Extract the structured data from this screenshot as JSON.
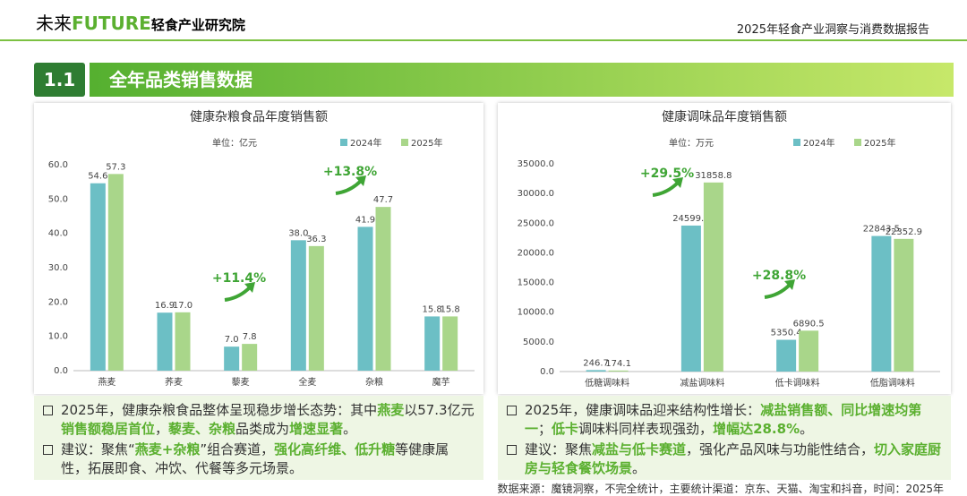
{
  "header": {
    "logo_a": "未来",
    "logo_b": "FUTURE",
    "logo_c": "轻食产业研究院",
    "report": "2025年轻食产业洞察与消费数据报告"
  },
  "section": {
    "number": "1.1",
    "title": "全年品类销售数据"
  },
  "chart_data": [
    {
      "type": "bar",
      "title": "健康杂粮食品年度销售额",
      "unit": "单位：亿元",
      "categories": [
        "燕麦",
        "荞麦",
        "藜麦",
        "全麦",
        "杂粮",
        "魔芋"
      ],
      "series": [
        {
          "name": "2024年",
          "color": "#6cbfc5",
          "values": [
            54.6,
            16.9,
            7.0,
            38.0,
            41.9,
            15.8
          ],
          "value_labels": [
            "54.6",
            "16.9",
            "7.0",
            "38.0",
            "41.9",
            "15.8"
          ]
        },
        {
          "name": "2025年",
          "color": "#a9d68a",
          "values": [
            57.3,
            17.0,
            7.8,
            36.3,
            47.7,
            15.8
          ],
          "value_labels": [
            "57.3",
            "17.0",
            "7.8",
            "36.3",
            "47.7",
            "15.8"
          ]
        }
      ],
      "ylim": [
        0,
        60
      ],
      "yticks": [
        {
          "value": 0,
          "label": "0.0"
        },
        {
          "value": 10,
          "label": "10.0"
        },
        {
          "value": 20,
          "label": "20.0"
        },
        {
          "value": 30,
          "label": "30.0"
        },
        {
          "value": 40,
          "label": "40.0"
        },
        {
          "value": 50,
          "label": "50.0"
        },
        {
          "value": 60,
          "label": "60.0"
        }
      ],
      "grid": false,
      "annotations": [
        "+11.4%",
        "+13.8%"
      ]
    },
    {
      "type": "bar",
      "title": "健康调味品年度销售额",
      "unit": "单位：万元",
      "categories": [
        "低糖调味料",
        "减盐调味料",
        "低卡调味料",
        "低脂调味料"
      ],
      "series": [
        {
          "name": "2024年",
          "color": "#6cbfc5",
          "values": [
            246.7,
            24599.6,
            5350.4,
            22843.5
          ]
        },
        {
          "name": "2025年",
          "color": "#a9d68a",
          "values": [
            174.1,
            31858.8,
            6890.5,
            22352.9
          ]
        }
      ],
      "ylim": [
        0,
        35000
      ],
      "yticks": [
        {
          "value": 0,
          "label": "0.0"
        },
        {
          "value": 5000,
          "label": "5000.0"
        },
        {
          "value": 10000,
          "label": "10000.0"
        },
        {
          "value": 15000,
          "label": "15000.0"
        },
        {
          "value": 20000,
          "label": "20000.0"
        },
        {
          "value": 25000,
          "label": "25000.0"
        },
        {
          "value": 30000,
          "label": "30000.0"
        },
        {
          "value": 35000,
          "label": "35000.0"
        }
      ],
      "grid": false,
      "annotations": [
        "+29.5%",
        "+28.8%"
      ]
    }
  ],
  "notes": [
    [
      [
        {
          "text": "2025年，健康杂粮食品整体呈现稳步增长态势：其中"
        },
        {
          "text": "燕麦",
          "bold": true
        },
        {
          "text": "以57.3亿元"
        },
        {
          "text": "销售额稳居首位",
          "bold": true
        },
        {
          "text": "，"
        },
        {
          "text": "藜麦、杂粮",
          "bold": true
        },
        {
          "text": "品类成为"
        },
        {
          "text": "增速显著",
          "bold": true
        },
        {
          "text": "。"
        }
      ],
      [
        {
          "text": "建议：聚焦“"
        },
        {
          "text": "燕麦+杂粮",
          "bold": true
        },
        {
          "text": "”组合赛道，"
        },
        {
          "text": "强化高纤维、低升糖",
          "bold": true
        },
        {
          "text": "等健康属性，拓展即食、冲饮、代餐等多元场景。"
        }
      ]
    ],
    [
      [
        {
          "text": "2025年，健康调味品迎来结构性增长："
        },
        {
          "text": "减盐销售额、同比增速均第一",
          "bold": true
        },
        {
          "text": "；"
        },
        {
          "text": "低卡",
          "bold": true
        },
        {
          "text": "调味料同样表现强劲，"
        },
        {
          "text": "增幅达28.8%",
          "bold": true
        },
        {
          "text": "。"
        }
      ],
      [
        {
          "text": "建议：聚焦"
        },
        {
          "text": "减盐与低卡赛道",
          "bold": true
        },
        {
          "text": "，强化产品风味与功能性结合，"
        },
        {
          "text": "切入家庭厨房与轻食餐饮场景",
          "bold": true
        },
        {
          "text": "。"
        }
      ]
    ]
  ],
  "source": "数据来源：魔镜洞察，不完全统计，主要统计渠道：京东、天猫、淘宝和抖音，时间：2025年"
}
